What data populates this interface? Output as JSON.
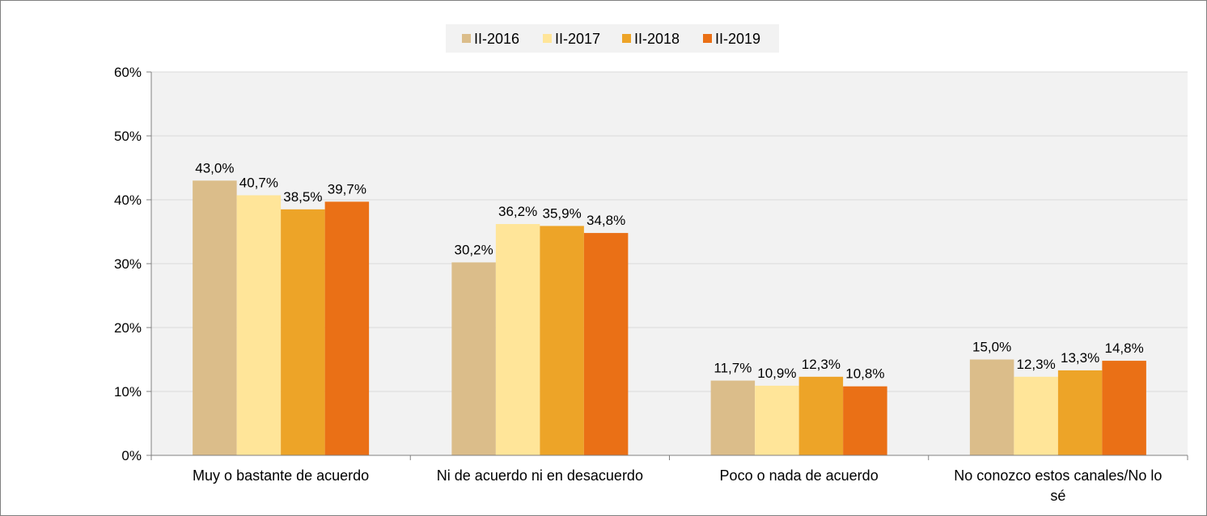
{
  "chart_data": {
    "type": "bar",
    "categories": [
      [
        "Muy o bastante de acuerdo"
      ],
      [
        "Ni de acuerdo ni en desacuerdo"
      ],
      [
        "Poco o nada de acuerdo"
      ],
      [
        "No conozco estos canales/No lo",
        "sé"
      ]
    ],
    "series": [
      {
        "name": "II-2016",
        "color": "#DBBD8A",
        "values": [
          43.0,
          30.2,
          11.7,
          15.0
        ],
        "labels": [
          "43,0%",
          "30,2%",
          "11,7%",
          "15,0%"
        ]
      },
      {
        "name": "II-2017",
        "color": "#FFE599",
        "values": [
          40.7,
          36.2,
          10.9,
          12.3
        ],
        "labels": [
          "40,7%",
          "36,2%",
          "10,9%",
          "12,3%"
        ]
      },
      {
        "name": "II-2018",
        "color": "#EDA428",
        "values": [
          38.5,
          35.9,
          12.3,
          13.3
        ],
        "labels": [
          "38,5%",
          "35,9%",
          "12,3%",
          "13,3%"
        ]
      },
      {
        "name": "II-2019",
        "color": "#EA7016",
        "values": [
          39.7,
          34.8,
          10.8,
          14.8
        ],
        "labels": [
          "39,7%",
          "34,8%",
          "10,8%",
          "14,8%"
        ]
      }
    ],
    "ylim": [
      0,
      60
    ],
    "yticks": [
      0,
      10,
      20,
      30,
      40,
      50,
      60
    ],
    "ytick_labels": [
      "0%",
      "10%",
      "20%",
      "30%",
      "40%",
      "50%",
      "60%"
    ],
    "legend_position": "top-center",
    "grid": true,
    "plot_background": "#F2F2F2",
    "gridline_color": "#D9D9D9"
  }
}
